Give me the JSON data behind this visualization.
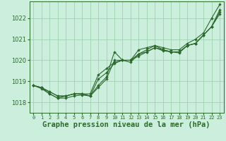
{
  "background_color": "#cceedd",
  "grid_color": "#99ccaa",
  "line_color": "#2d6a2d",
  "marker_color": "#2d6a2d",
  "xlabel": "Graphe pression niveau de la mer (hPa)",
  "xlabel_fontsize": 7.5,
  "ylabel_ticks": [
    1018,
    1019,
    1020,
    1021,
    1022
  ],
  "xlim": [
    -0.5,
    23.5
  ],
  "ylim": [
    1017.5,
    1022.8
  ],
  "xticks": [
    0,
    1,
    2,
    3,
    4,
    5,
    6,
    7,
    8,
    9,
    10,
    11,
    12,
    13,
    14,
    15,
    16,
    17,
    18,
    19,
    20,
    21,
    22,
    23
  ],
  "series": [
    [
      1018.8,
      1018.7,
      1018.5,
      1018.3,
      1018.3,
      1018.4,
      1018.4,
      1018.4,
      1019.3,
      1019.6,
      1019.9,
      1020.0,
      1020.0,
      1020.5,
      1020.6,
      1020.7,
      1020.6,
      1020.5,
      1020.5,
      1020.8,
      1021.0,
      1021.3,
      1022.0,
      1022.65
    ],
    [
      1018.8,
      1018.7,
      1018.5,
      1018.3,
      1018.3,
      1018.4,
      1018.4,
      1018.3,
      1018.8,
      1019.2,
      1020.4,
      1020.0,
      1019.9,
      1020.3,
      1020.5,
      1020.7,
      1020.5,
      1020.4,
      1020.4,
      1020.7,
      1020.8,
      1021.2,
      1021.6,
      1022.4
    ],
    [
      1018.8,
      1018.7,
      1018.4,
      1018.2,
      1018.3,
      1018.4,
      1018.4,
      1018.3,
      1019.1,
      1019.4,
      1019.85,
      1020.0,
      1020.0,
      1020.3,
      1020.4,
      1020.6,
      1020.5,
      1020.4,
      1020.4,
      1020.7,
      1020.8,
      1021.2,
      1021.6,
      1022.3
    ],
    [
      1018.8,
      1018.65,
      1018.4,
      1018.2,
      1018.2,
      1018.3,
      1018.35,
      1018.3,
      1018.7,
      1019.1,
      1020.0,
      1020.0,
      1020.0,
      1020.2,
      1020.4,
      1020.6,
      1020.45,
      1020.4,
      1020.35,
      1020.7,
      1020.8,
      1021.2,
      1021.6,
      1022.2
    ]
  ]
}
